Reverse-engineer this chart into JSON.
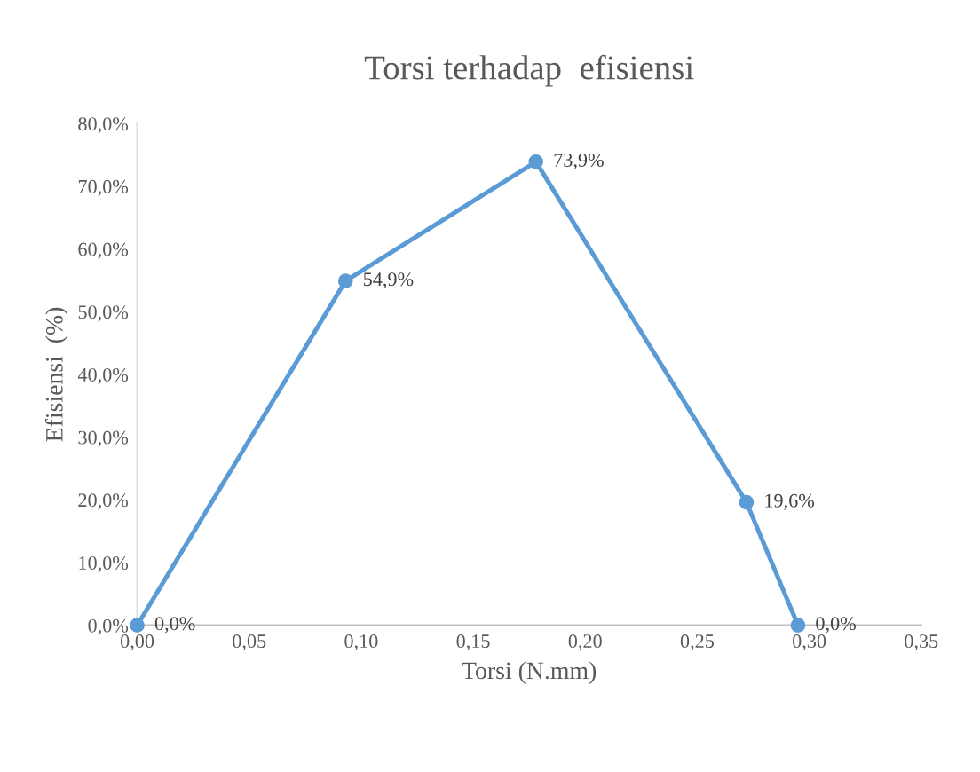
{
  "chart_data": {
    "type": "line",
    "title": "Torsi terhadap  efisiensi",
    "xlabel": "Torsi (N.mm)",
    "ylabel": "Efisiensi  (%)",
    "x": [
      0.0,
      0.093,
      0.178,
      0.272,
      0.295
    ],
    "series": [
      {
        "color": "#5b9bd5",
        "values": [
          0.0,
          54.9,
          73.9,
          19.6,
          0.0
        ],
        "value_labels": [
          "0,0%",
          "54,9%",
          "73,9%",
          "19,6%",
          "0,0%"
        ]
      }
    ],
    "xlim": [
      0,
      0.35
    ],
    "xticks": [
      {
        "value": 0,
        "label": "0,00"
      },
      {
        "value": 0.05,
        "label": "0,05"
      },
      {
        "value": 0.1,
        "label": "0,10"
      },
      {
        "value": 0.15,
        "label": "0,15"
      },
      {
        "value": 0.2,
        "label": "0,20"
      },
      {
        "value": 0.25,
        "label": "0,25"
      },
      {
        "value": 0.3,
        "label": "0,30"
      },
      {
        "value": 0.35,
        "label": "0,35"
      }
    ],
    "ylim": [
      0,
      80
    ],
    "yticks": [
      {
        "value": 0,
        "label": "0,0%"
      },
      {
        "value": 10,
        "label": "10,0%"
      },
      {
        "value": 20,
        "label": "20,0%"
      },
      {
        "value": 30,
        "label": "30,0%"
      },
      {
        "value": 40,
        "label": "40,0%"
      },
      {
        "value": 50,
        "label": "50,0%"
      },
      {
        "value": 60,
        "label": "60,0%"
      },
      {
        "value": 70,
        "label": "70,0%"
      },
      {
        "value": 80,
        "label": "80,0%"
      }
    ],
    "marker": "circle",
    "line_style": "solid",
    "grid": false,
    "legend": false
  }
}
